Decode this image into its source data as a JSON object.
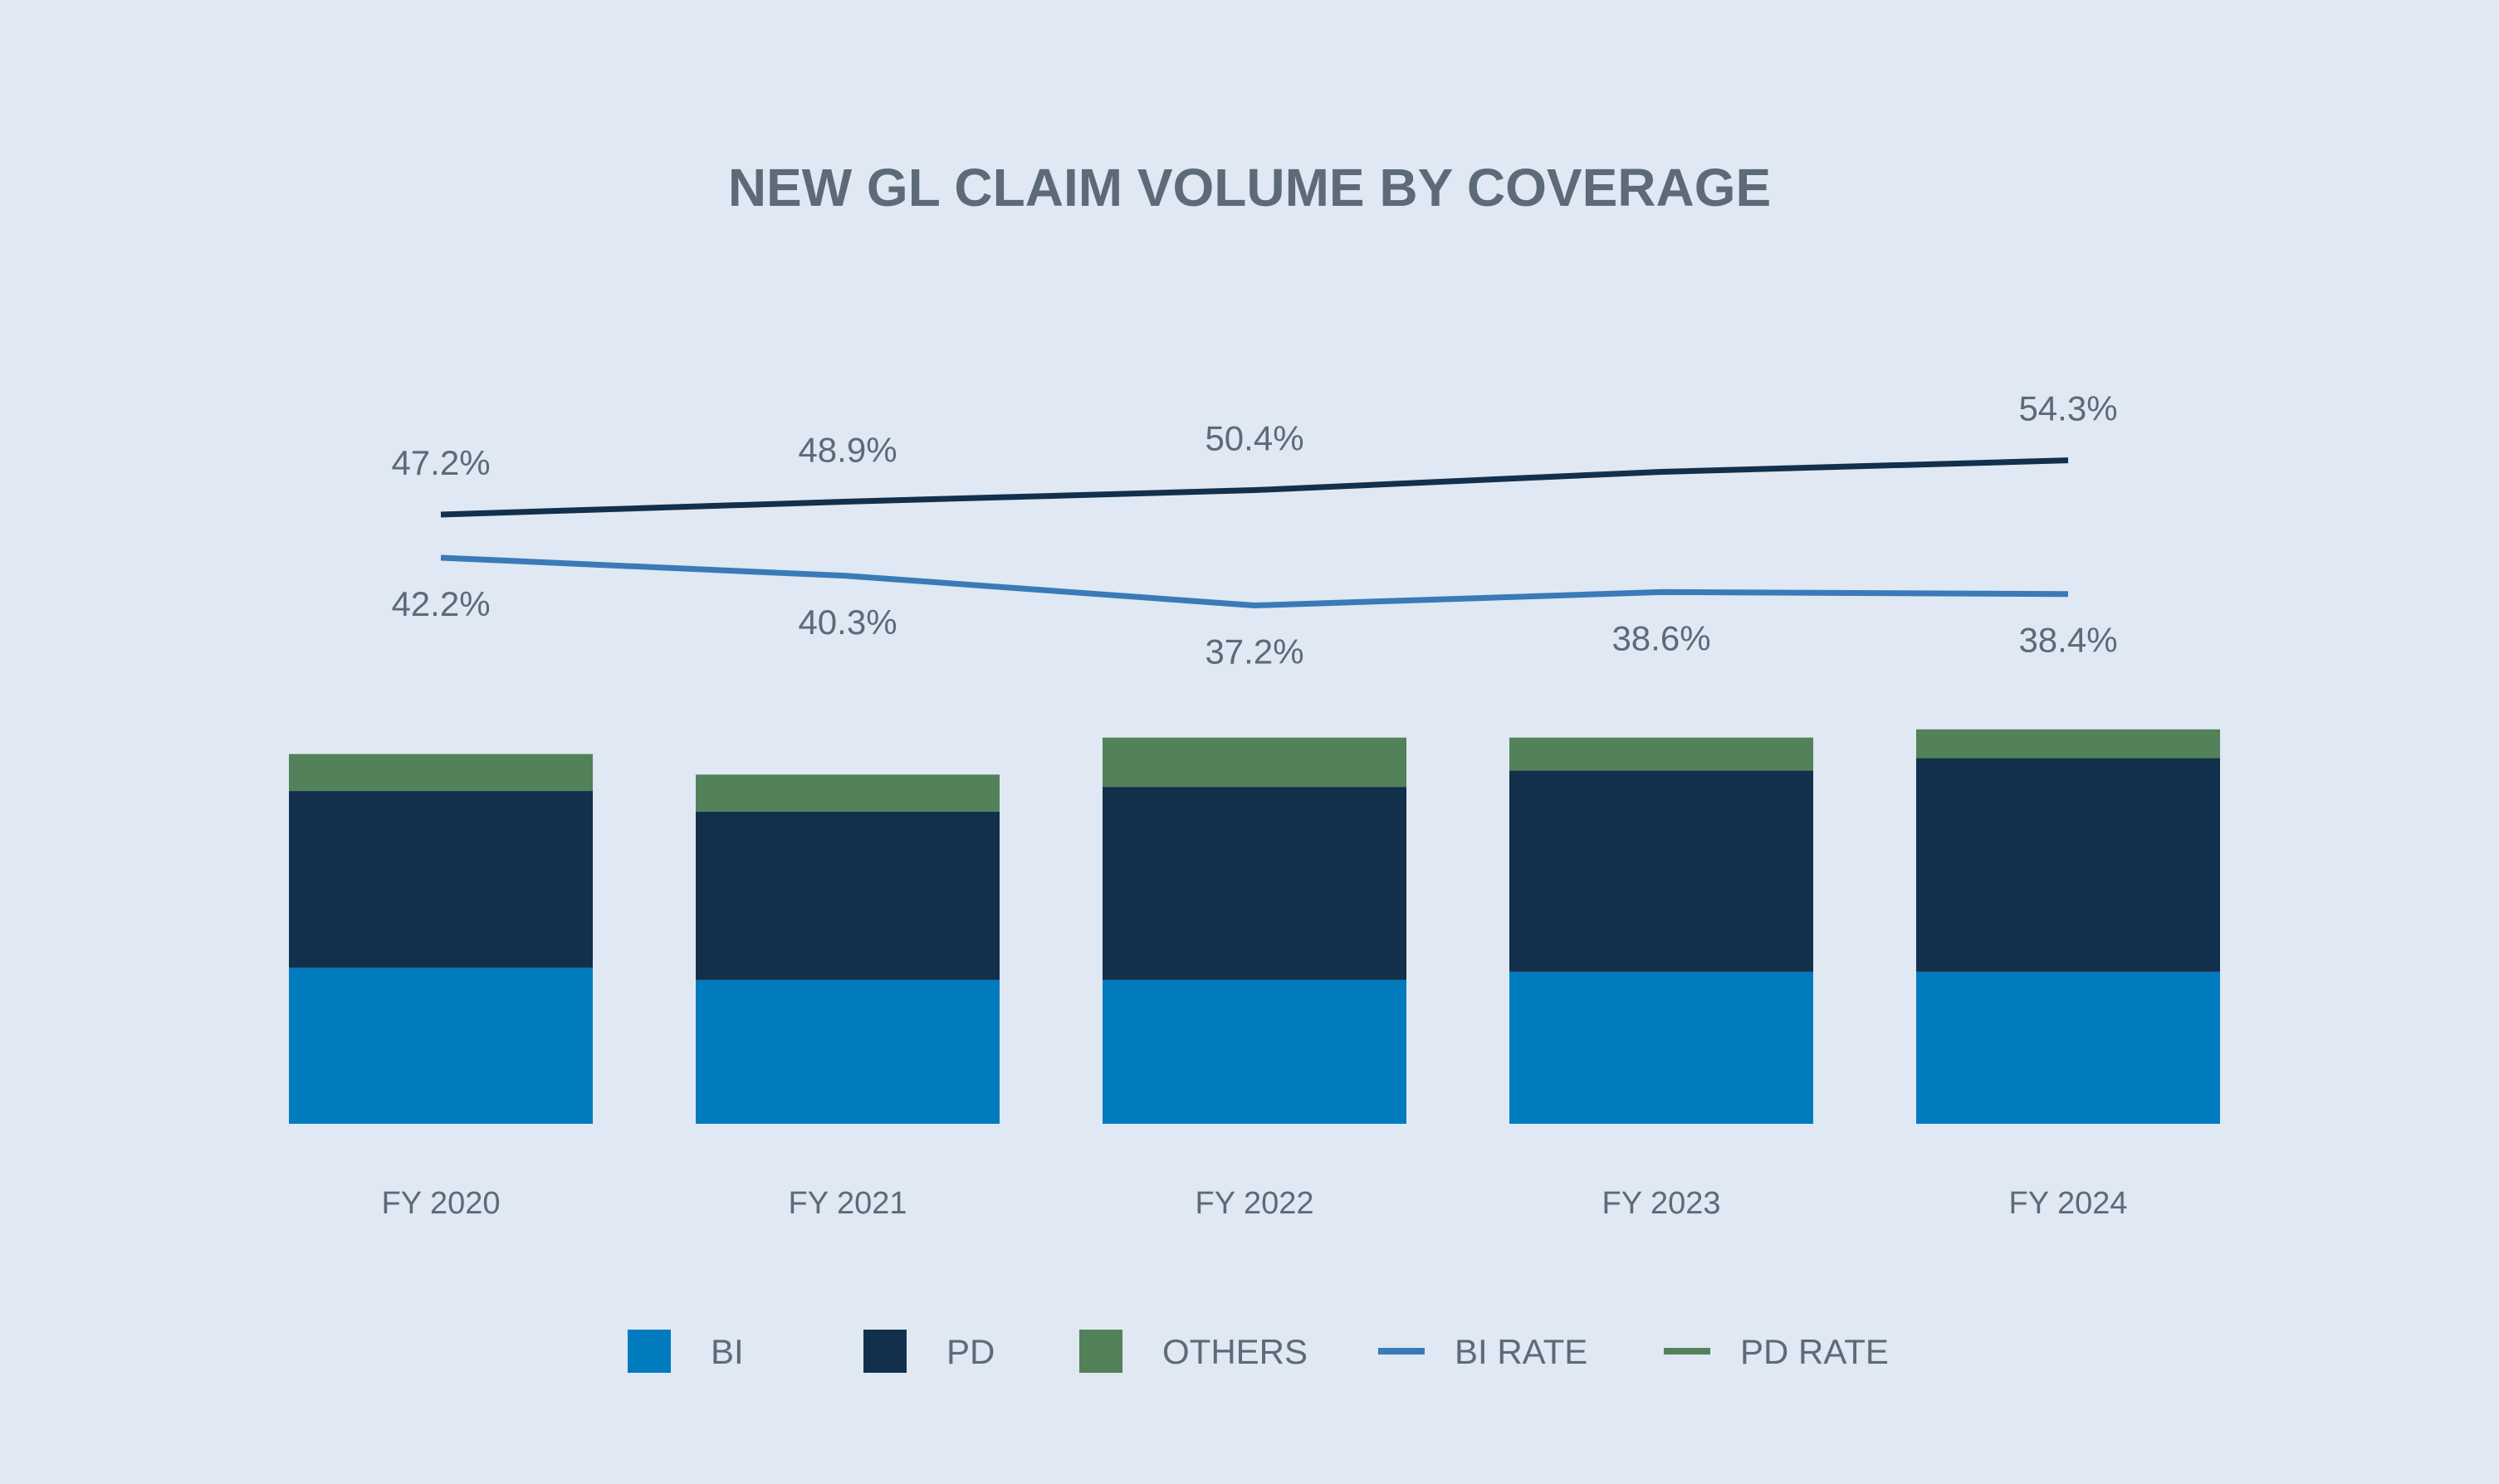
{
  "chart_data": {
    "type": "bar",
    "stacked": true,
    "title": "NEW GL CLAIM VOLUME BY COVERAGE",
    "categories": [
      "FY 2020",
      "FY 2021",
      "FY 2022",
      "FY 2023",
      "FY 2024"
    ],
    "series": [
      {
        "name": "BI",
        "values": [
          38,
          35,
          35,
          37,
          37
        ],
        "color": "#007bbd"
      },
      {
        "name": "PD",
        "values": [
          43,
          41,
          47,
          49,
          52
        ],
        "color": "#12304b"
      },
      {
        "name": "OTHERS",
        "values": [
          9,
          9,
          12,
          8,
          7
        ],
        "color": "#538159"
      }
    ],
    "ylim": [
      0,
      100
    ],
    "lines": [
      {
        "name": "PD RATE",
        "values": [
          47.2,
          48.9,
          50.4,
          52.8,
          54.3
        ],
        "labels": [
          "47.2%",
          "48.9%",
          "50.4%",
          "",
          "54.3%"
        ],
        "color": "#12304b",
        "legend_color": "#538159"
      },
      {
        "name": "BI RATE",
        "values": [
          42.2,
          40.3,
          37.2,
          38.6,
          38.4
        ],
        "labels": [
          "42.2%",
          "40.3%",
          "37.2%",
          "38.6%",
          "38.4%"
        ],
        "color": "#3a7ab8",
        "legend_color": "#3a7ab8"
      }
    ],
    "legend": [
      {
        "name": "BI",
        "kind": "square",
        "color": "#007bbd"
      },
      {
        "name": "PD",
        "kind": "square",
        "color": "#12304b"
      },
      {
        "name": "OTHERS",
        "kind": "square",
        "color": "#538159"
      },
      {
        "name": "BI RATE",
        "kind": "line",
        "color": "#3a7ab8"
      },
      {
        "name": "PD RATE",
        "kind": "line",
        "color": "#538159"
      }
    ],
    "legend_position": "bottom",
    "grid": false
  },
  "colors": {
    "background": "#dfe8f3",
    "text": "#5d6a78"
  }
}
